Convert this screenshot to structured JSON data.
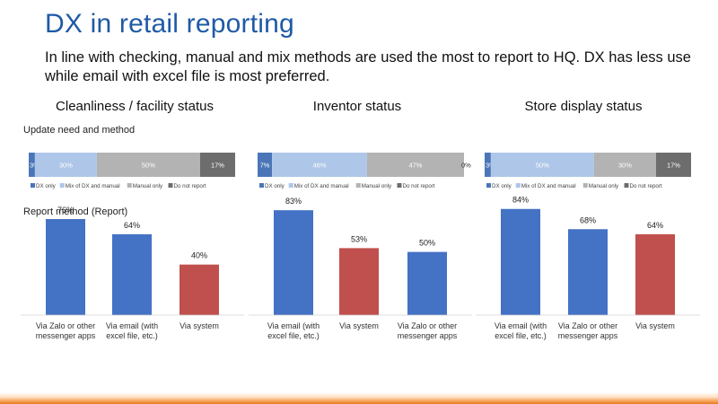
{
  "slide": {
    "title": "DX in retail reporting",
    "subtitle": "In line with checking, manual and mix methods are used the most to report to HQ. DX has less use while email with excel file is most preferred."
  },
  "sections": {
    "update_label": "Update need and method",
    "report_label": "Report method (Report)"
  },
  "panels": [
    {
      "title": "Cleanliness / facility status"
    },
    {
      "title": "Inventor status"
    },
    {
      "title": "Store display status"
    }
  ],
  "colors": {
    "dx_only": "#4a76b8",
    "mix": "#aec6e8",
    "manual_only": "#b3b3b3",
    "do_not_report": "#6d6d6d",
    "bar_blue": "#4472c4",
    "bar_red": "#c0504d",
    "title_blue": "#1f5aa6",
    "accent_orange": "#e8791f"
  },
  "chart_data": [
    {
      "type": "bar",
      "stacked": true,
      "orientation": "horizontal",
      "xlim": [
        0,
        100
      ],
      "categories": [
        ""
      ],
      "series": [
        {
          "name": "DX only",
          "values": [
            3
          ]
        },
        {
          "name": "Mix of DX and manual",
          "values": [
            30
          ]
        },
        {
          "name": "Manual only",
          "values": [
            50
          ]
        },
        {
          "name": "Do not report",
          "values": [
            17
          ]
        }
      ],
      "data_labels": [
        "3%",
        "30%",
        "50%",
        "17%"
      ],
      "legend": "bottom"
    },
    {
      "type": "bar",
      "stacked": true,
      "orientation": "horizontal",
      "xlim": [
        0,
        100
      ],
      "categories": [
        ""
      ],
      "series": [
        {
          "name": "DX only",
          "values": [
            7
          ]
        },
        {
          "name": "Mix of DX and manual",
          "values": [
            46
          ]
        },
        {
          "name": "Manual only",
          "values": [
            47
          ]
        },
        {
          "name": "Do not report",
          "values": [
            0
          ]
        }
      ],
      "data_labels": [
        "7%",
        "46%",
        "47%",
        "0%"
      ],
      "legend": "bottom"
    },
    {
      "type": "bar",
      "stacked": true,
      "orientation": "horizontal",
      "xlim": [
        0,
        100
      ],
      "categories": [
        ""
      ],
      "series": [
        {
          "name": "DX only",
          "values": [
            3
          ]
        },
        {
          "name": "Mix of DX and manual",
          "values": [
            50
          ]
        },
        {
          "name": "Manual only",
          "values": [
            30
          ]
        },
        {
          "name": "Do not report",
          "values": [
            17
          ]
        }
      ],
      "data_labels": [
        "3%",
        "50%",
        "30%",
        "17%"
      ],
      "legend": "bottom"
    },
    {
      "type": "bar",
      "categories": [
        "Via Zalo or other messenger apps",
        "Via email (with excel file, etc.)",
        "Via system"
      ],
      "category_lines": [
        [
          "Via Zalo or other",
          "messenger apps"
        ],
        [
          "Via email (with",
          "excel file, etc.)"
        ],
        [
          "Via system"
        ]
      ],
      "values": [
        76,
        64,
        40
      ],
      "data_labels": [
        "76%",
        "64%",
        "40%"
      ],
      "bar_colors": [
        "blue",
        "blue",
        "red"
      ],
      "ylim": [
        0,
        100
      ]
    },
    {
      "type": "bar",
      "categories": [
        "Via email (with excel file, etc.)",
        "Via system",
        "Via Zalo or other messenger apps"
      ],
      "category_lines": [
        [
          "Via email (with",
          "excel file, etc.)"
        ],
        [
          "Via system"
        ],
        [
          "Via Zalo or other",
          "messenger apps"
        ]
      ],
      "values": [
        83,
        53,
        50
      ],
      "data_labels": [
        "83%",
        "53%",
        "50%"
      ],
      "bar_colors": [
        "blue",
        "red",
        "blue"
      ],
      "ylim": [
        0,
        100
      ]
    },
    {
      "type": "bar",
      "categories": [
        "Via email (with excel file, etc.)",
        "Via Zalo or other messenger apps",
        "Via system"
      ],
      "category_lines": [
        [
          "Via email (with",
          "excel file, etc.)"
        ],
        [
          "Via Zalo or other",
          "messenger apps"
        ],
        [
          "Via system"
        ]
      ],
      "values": [
        84,
        68,
        64
      ],
      "data_labels": [
        "84%",
        "68%",
        "64%"
      ],
      "bar_colors": [
        "blue",
        "blue",
        "red"
      ],
      "ylim": [
        0,
        100
      ]
    }
  ]
}
